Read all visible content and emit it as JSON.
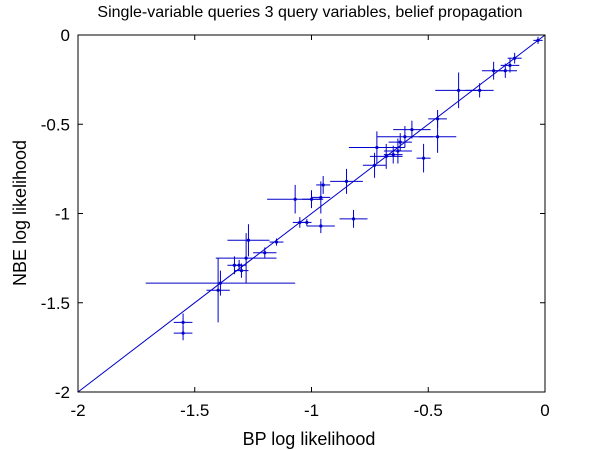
{
  "chart_data": {
    "type": "scatter",
    "title": "Single-variable queries 3 query variables, belief propagation",
    "xlabel": "BP log likelihood",
    "ylabel": "NBE log likelihood",
    "xlim": [
      -2,
      0
    ],
    "ylim": [
      -2,
      0
    ],
    "x_ticks": [
      -2,
      -1.5,
      -1,
      -0.5,
      0
    ],
    "y_ticks": [
      -2,
      -1.5,
      -1,
      -0.5,
      0
    ],
    "x_tick_labels": [
      "-2",
      "-1.5",
      "-1",
      "-0.5",
      "0"
    ],
    "y_tick_labels": [
      "-2",
      "-1.5",
      "-1",
      "-0.5",
      "0"
    ],
    "grid": false,
    "reference_line": {
      "from": [
        -2,
        -2
      ],
      "to": [
        0,
        0
      ]
    },
    "colors": {
      "series": "#0000cc",
      "axes": "#000000"
    },
    "series": [
      {
        "points": [
          {
            "x": -0.03,
            "y": -0.03,
            "xerr": 0.02,
            "yerr": 0.02
          },
          {
            "x": -0.13,
            "y": -0.13,
            "xerr": 0.03,
            "yerr": 0.03
          },
          {
            "x": -0.15,
            "y": -0.17,
            "xerr": 0.04,
            "yerr": 0.04
          },
          {
            "x": -0.17,
            "y": -0.2,
            "xerr": 0.05,
            "yerr": 0.04
          },
          {
            "x": -0.22,
            "y": -0.2,
            "xerr": 0.05,
            "yerr": 0.05
          },
          {
            "x": -0.28,
            "y": -0.31,
            "xerr": 0.06,
            "yerr": 0.04
          },
          {
            "x": -0.37,
            "y": -0.31,
            "xerr": 0.1,
            "yerr": 0.1
          },
          {
            "x": -0.46,
            "y": -0.47,
            "xerr": 0.04,
            "yerr": 0.05
          },
          {
            "x": -0.46,
            "y": -0.57,
            "xerr": 0.08,
            "yerr": 0.09
          },
          {
            "x": -0.52,
            "y": -0.69,
            "xerr": 0.03,
            "yerr": 0.08
          },
          {
            "x": -0.57,
            "y": -0.53,
            "xerr": 0.08,
            "yerr": 0.05
          },
          {
            "x": -0.6,
            "y": -0.57,
            "xerr": 0.12,
            "yerr": 0.06
          },
          {
            "x": -0.62,
            "y": -0.6,
            "xerr": 0.05,
            "yerr": 0.05
          },
          {
            "x": -0.63,
            "y": -0.65,
            "xerr": 0.06,
            "yerr": 0.07
          },
          {
            "x": -0.65,
            "y": -0.67,
            "xerr": 0.04,
            "yerr": 0.05
          },
          {
            "x": -0.68,
            "y": -0.68,
            "xerr": 0.07,
            "yerr": 0.07
          },
          {
            "x": -0.72,
            "y": -0.63,
            "xerr": 0.12,
            "yerr": 0.09
          },
          {
            "x": -0.73,
            "y": -0.73,
            "xerr": 0.05,
            "yerr": 0.07
          },
          {
            "x": -0.82,
            "y": -1.03,
            "xerr": 0.06,
            "yerr": 0.05
          },
          {
            "x": -0.85,
            "y": -0.82,
            "xerr": 0.07,
            "yerr": 0.07
          },
          {
            "x": -0.95,
            "y": -0.84,
            "xerr": 0.03,
            "yerr": 0.05
          },
          {
            "x": -0.96,
            "y": -0.91,
            "xerr": 0.04,
            "yerr": 0.09
          },
          {
            "x": -0.96,
            "y": -1.07,
            "xerr": 0.06,
            "yerr": 0.04
          },
          {
            "x": -1.0,
            "y": -0.92,
            "xerr": 0.04,
            "yerr": 0.05
          },
          {
            "x": -1.02,
            "y": -1.05,
            "xerr": 0.02,
            "yerr": 0.02
          },
          {
            "x": -1.05,
            "y": -1.05,
            "xerr": 0.03,
            "yerr": 0.03
          },
          {
            "x": -1.07,
            "y": -0.92,
            "xerr": 0.12,
            "yerr": 0.08
          },
          {
            "x": -1.15,
            "y": -1.16,
            "xerr": 0.03,
            "yerr": 0.02
          },
          {
            "x": -1.2,
            "y": -1.22,
            "xerr": 0.05,
            "yerr": 0.03
          },
          {
            "x": -1.27,
            "y": -1.15,
            "xerr": 0.09,
            "yerr": 0.09
          },
          {
            "x": -1.28,
            "y": -1.25,
            "xerr": 0.13,
            "yerr": 0.14
          },
          {
            "x": -1.3,
            "y": -1.32,
            "xerr": 0.03,
            "yerr": 0.04
          },
          {
            "x": -1.31,
            "y": -1.29,
            "xerr": 0.03,
            "yerr": 0.03
          },
          {
            "x": -1.33,
            "y": -1.29,
            "xerr": 0.03,
            "yerr": 0.05
          },
          {
            "x": -1.39,
            "y": -1.39,
            "xerr": 0.32,
            "yerr": 0.07
          },
          {
            "x": -1.4,
            "y": -1.43,
            "xerr": 0.05,
            "yerr": 0.18
          },
          {
            "x": -1.55,
            "y": -1.61,
            "xerr": 0.04,
            "yerr": 0.05
          },
          {
            "x": -1.55,
            "y": -1.67,
            "xerr": 0.04,
            "yerr": 0.04
          }
        ]
      }
    ]
  }
}
